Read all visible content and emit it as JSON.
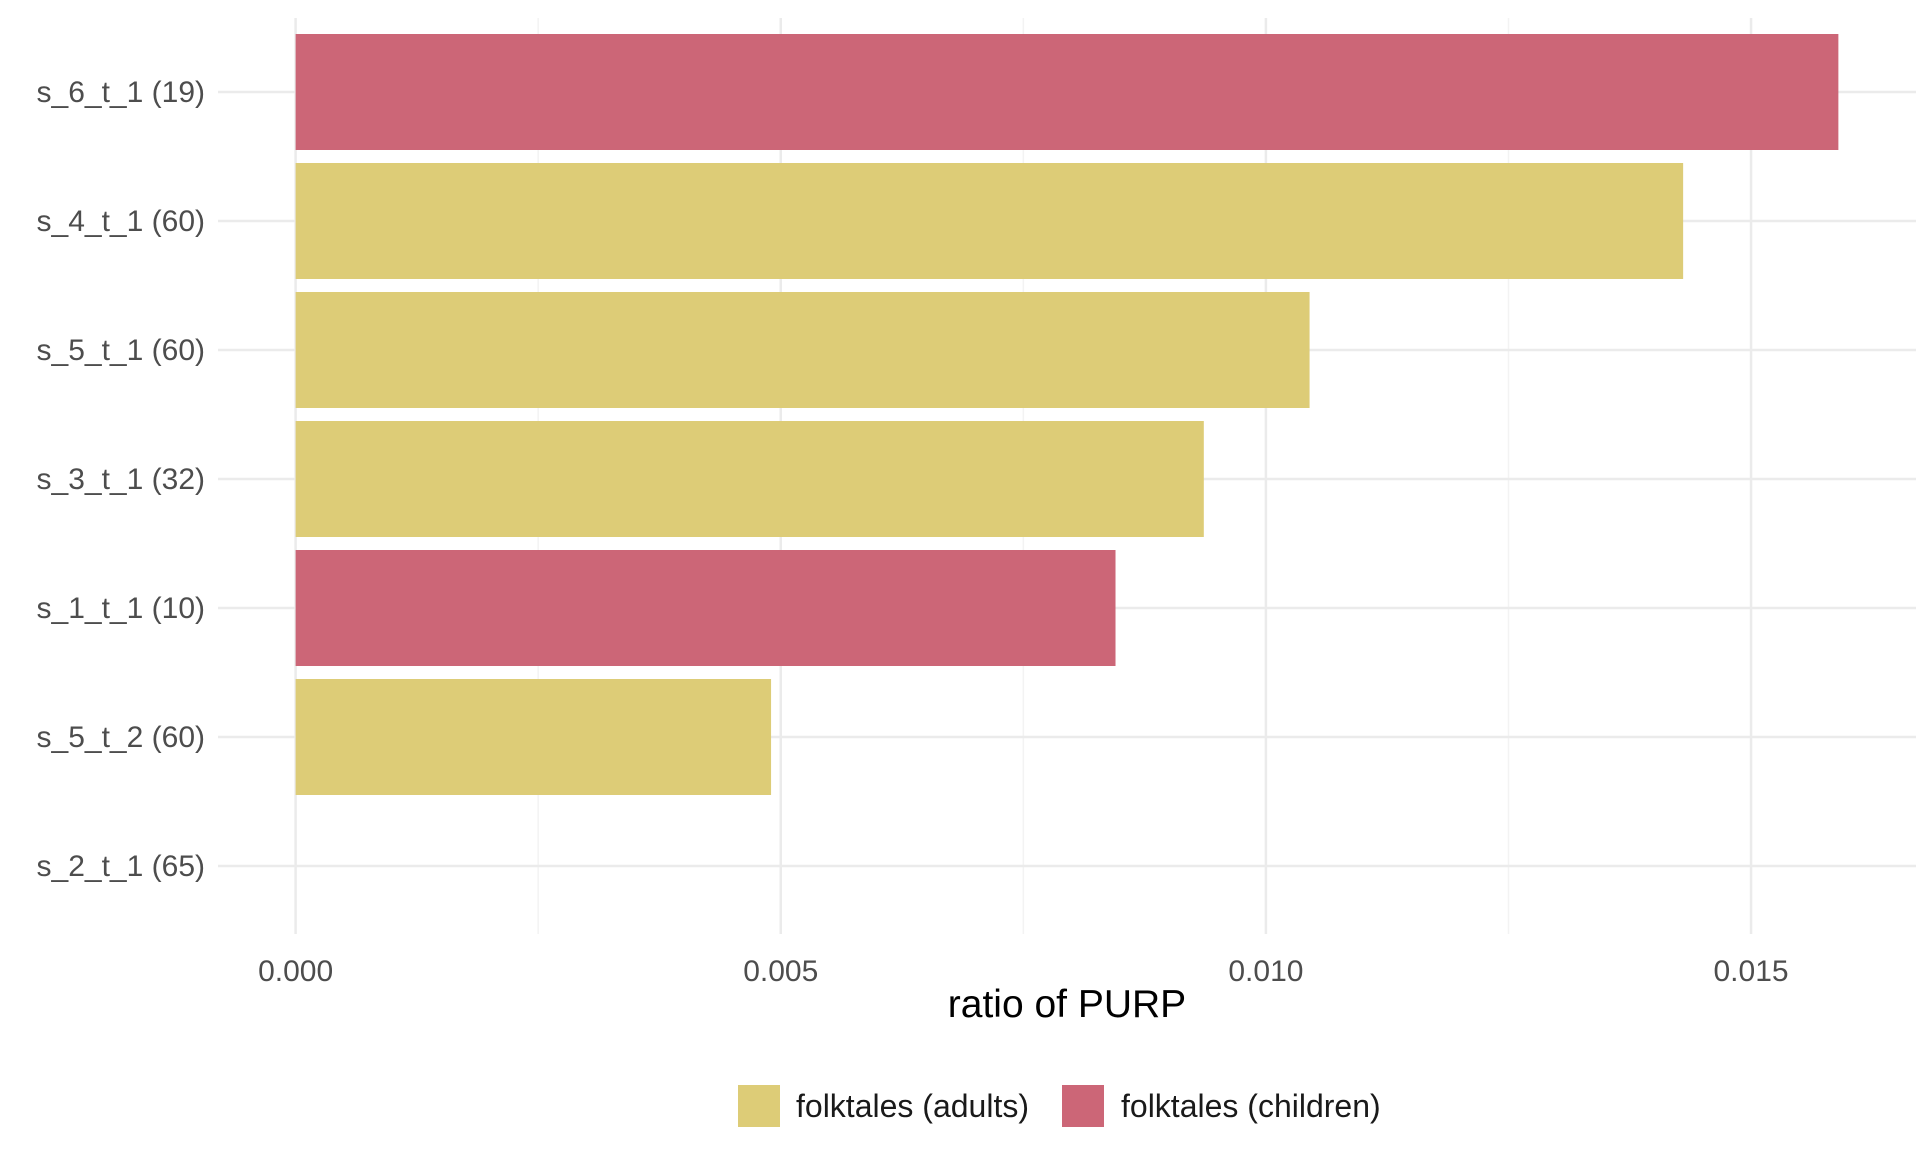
{
  "chart_data": {
    "type": "bar",
    "orientation": "horizontal",
    "categories": [
      "s_6_t_1 (19)",
      "s_4_t_1 (60)",
      "s_5_t_1 (60)",
      "s_3_t_1 (32)",
      "s_1_t_1 (10)",
      "s_5_t_2 (60)",
      "s_2_t_1 (65)"
    ],
    "values": [
      0.0159,
      0.0143,
      0.01045,
      0.00936,
      0.00845,
      0.0049,
      0
    ],
    "groups": [
      "folktales (children)",
      "folktales (adults)",
      "folktales (adults)",
      "folktales (adults)",
      "folktales (children)",
      "folktales (adults)",
      "folktales (adults)"
    ],
    "title": "",
    "xlabel": "ratio of PURP",
    "ylabel": "",
    "xlim": [
      -0.0008,
      0.0167
    ],
    "x_ticks": [
      0,
      0.005,
      0.01,
      0.015
    ],
    "x_tick_labels": [
      "0.000",
      "0.005",
      "0.010",
      "0.015"
    ],
    "grid": true,
    "legend_position": "bottom",
    "legend": [
      {
        "name": "folktales (adults)",
        "color": "#DDCC77"
      },
      {
        "name": "folktales (children)",
        "color": "#CC6677"
      }
    ]
  },
  "colors": {
    "folktales (adults)": "#DDCC77",
    "folktales (children)": "#CC6677",
    "grid_major": "#ebebeb",
    "grid_minor": "#f3f3f3"
  }
}
